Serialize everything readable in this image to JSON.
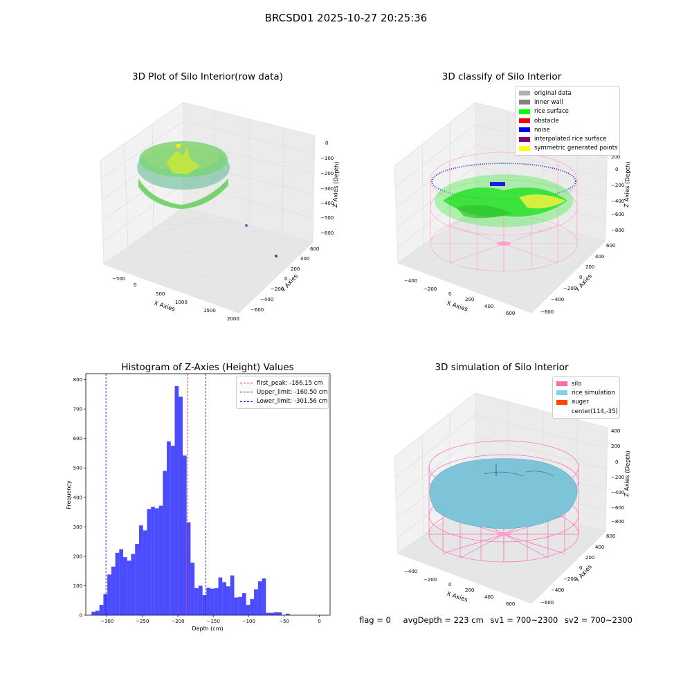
{
  "suptitle": "BRCSD01 2025-10-27 20:25:36",
  "panels": {
    "raw": {
      "title": "3D Plot of Silo Interior(row data)",
      "xlabel": "X Axies",
      "ylabel": "Y Axies",
      "zlabel": "Z Axies (Depth)",
      "xticks": [
        "−500",
        "0",
        "500",
        "1000",
        "1500",
        "2000"
      ],
      "yticks": [
        "600",
        "400",
        "200",
        "0",
        "−200",
        "−400",
        "−600"
      ],
      "zticks": [
        "0",
        "−100",
        "−200",
        "−300",
        "−400",
        "−500",
        "−600"
      ]
    },
    "classify": {
      "title": "3D classify of Silo Interior",
      "xlabel": "X Axies",
      "ylabel": "Y Axies",
      "zlabel": "Z Axies (Depth)",
      "xticks": [
        "−400",
        "−200",
        "0",
        "200",
        "400",
        "600"
      ],
      "yticks": [
        "600",
        "400",
        "200",
        "0",
        "−200",
        "−400",
        "−600"
      ],
      "zticks": [
        "200",
        "0",
        "−200",
        "−400",
        "−600",
        "−800"
      ],
      "legend": [
        {
          "label": "original data",
          "color": "#b0b0b0"
        },
        {
          "label": "inner wall",
          "color": "#808080"
        },
        {
          "label": "rice surface",
          "color": "#00ff00"
        },
        {
          "label": "obstacle",
          "color": "#ff0000"
        },
        {
          "label": "noise",
          "color": "#0000ff"
        },
        {
          "label": "interpolated rice surface",
          "color": "#800080"
        },
        {
          "label": "symmetric generated points",
          "color": "#ffff00"
        }
      ]
    },
    "simulation": {
      "title": "3D simulation of Silo Interior",
      "xlabel": "X Axies",
      "ylabel": "Y Axies",
      "zlabel": "Z Axies (Depth)",
      "xticks": [
        "−400",
        "−200",
        "0",
        "200",
        "400",
        "600"
      ],
      "yticks": [
        "600",
        "400",
        "200",
        "0",
        "−200",
        "−400",
        "−600"
      ],
      "zticks": [
        "400",
        "200",
        "0",
        "−200",
        "−400",
        "−600",
        "−800"
      ],
      "legend": [
        {
          "label": "silo",
          "color": "#ff69b4"
        },
        {
          "label": "rice simulation",
          "color": "#87ceeb"
        },
        {
          "label": "auger",
          "color": "#ff4500"
        },
        {
          "label": "center(114,-35)",
          "color": ""
        }
      ]
    }
  },
  "footer": {
    "flag": "flag = 0",
    "avg_depth": "avgDepth = 223 cm",
    "sv1": "sv1 = 700~2300",
    "sv2": "sv2 = 700~2300"
  },
  "chart_data": {
    "type": "bar",
    "title": "Histogram of Z-Axies (Height) Values",
    "xlabel": "Depth (cm)",
    "ylabel": "Frequency",
    "xlim": [
      -330,
      15
    ],
    "ylim": [
      0,
      820
    ],
    "xticks": [
      -300,
      -250,
      -200,
      -150,
      -100,
      -50,
      0
    ],
    "yticks": [
      0,
      100,
      200,
      300,
      400,
      500,
      600,
      700,
      800
    ],
    "bin_start": -322,
    "bin_width": 5.6,
    "values": [
      12,
      15,
      35,
      72,
      138,
      165,
      212,
      224,
      197,
      185,
      208,
      242,
      305,
      288,
      360,
      368,
      363,
      372,
      490,
      590,
      575,
      778,
      742,
      542,
      315,
      178,
      92,
      100,
      68,
      93,
      90,
      92,
      128,
      112,
      98,
      135,
      60,
      62,
      75,
      35,
      55,
      88,
      115,
      125,
      8,
      8,
      10,
      10,
      0,
      5
    ],
    "bar_color": "#0000ff",
    "legend_position": "top-right",
    "vlines": [
      {
        "name": "first_peak: -186.15 cm",
        "x": -186.15,
        "color": "#ff0000"
      },
      {
        "name": "Upper_limit: -160.50 cm",
        "x": -160.5,
        "color": "#0000ff"
      },
      {
        "name": "Lower_limit: -301.56 cm",
        "x": -301.56,
        "color": "#0000ff"
      }
    ]
  }
}
